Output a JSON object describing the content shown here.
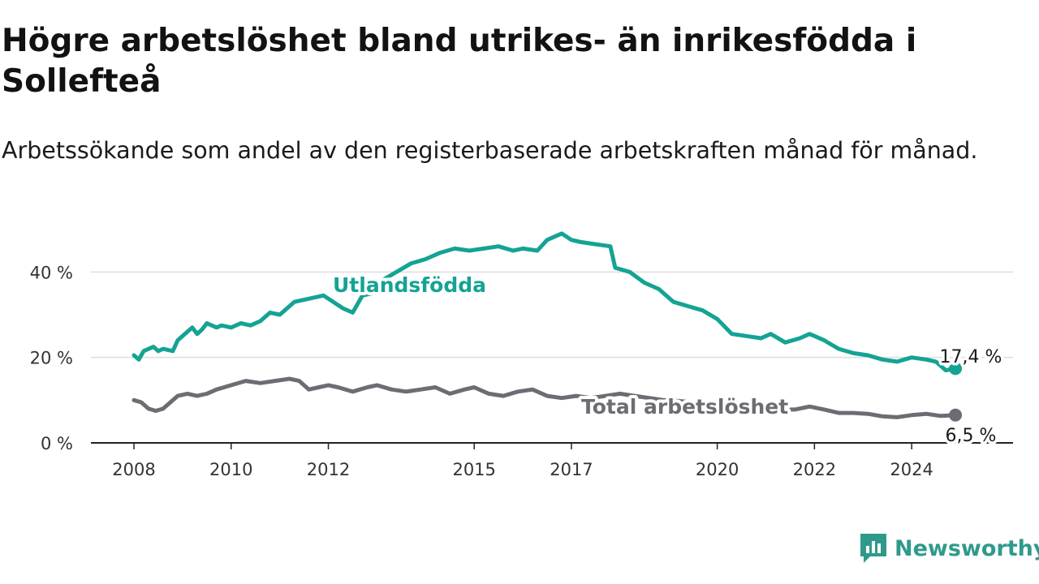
{
  "title": "Högre arbetslöshet bland utrikes- än inrikesfödda i Sollefteå",
  "subtitle": "Arbetssökande som andel av den registerbaserade arbetskraften månad för månad.",
  "logo_text": "Newsworthy",
  "colors": {
    "foreign": "#14a394",
    "total": "#6e6c73",
    "grid": "#dddddd",
    "axis": "#222222"
  },
  "chart_data": {
    "type": "line",
    "title": "Högre arbetslöshet bland utrikes- än inrikesfödda i Sollefteå",
    "subtitle": "Arbetssökande som andel av den registerbaserade arbetskraften månad för månad.",
    "xlabel": "",
    "ylabel": "",
    "xlim": [
      2008.0,
      2025.25
    ],
    "ylim": [
      0,
      45
    ],
    "grid": "horizontal",
    "x_ticks": [
      2008,
      2010,
      2012,
      2015,
      2017,
      2020,
      2022,
      2024
    ],
    "x_tick_labels": [
      "2008",
      "2010",
      "2012",
      "2015",
      "2017",
      "2020",
      "2022",
      "2024"
    ],
    "y_ticks": [
      0,
      20,
      40
    ],
    "y_tick_labels": [
      "0 %",
      "20 %",
      "40 %"
    ],
    "series": [
      {
        "name": "Utlandsfödda",
        "color": "#14a394",
        "end_label": "17,4 %",
        "x": [
          2008.0,
          2008.1,
          2008.2,
          2008.4,
          2008.5,
          2008.6,
          2008.8,
          2008.9,
          2009.0,
          2009.2,
          2009.3,
          2009.4,
          2009.5,
          2009.7,
          2009.8,
          2010.0,
          2010.2,
          2010.4,
          2010.6,
          2010.8,
          2011.0,
          2011.3,
          2011.5,
          2011.7,
          2011.9,
          2012.1,
          2012.3,
          2012.5,
          2012.7,
          2012.9,
          2013.1,
          2013.4,
          2013.7,
          2014.0,
          2014.3,
          2014.6,
          2014.9,
          2015.2,
          2015.5,
          2015.8,
          2016.0,
          2016.3,
          2016.5,
          2016.8,
          2017.0,
          2017.2,
          2017.5,
          2017.8,
          2017.9,
          2018.2,
          2018.5,
          2018.8,
          2019.1,
          2019.4,
          2019.7,
          2020.0,
          2020.3,
          2020.6,
          2020.9,
          2021.1,
          2021.4,
          2021.7,
          2021.9,
          2022.2,
          2022.5,
          2022.8,
          2023.1,
          2023.4,
          2023.7,
          2024.0,
          2024.3,
          2024.5,
          2024.7,
          2024.9
        ],
        "y": [
          20.5,
          19.5,
          21.5,
          22.5,
          21.5,
          22.0,
          21.5,
          24.0,
          25.0,
          27.0,
          25.5,
          26.5,
          28.0,
          27.0,
          27.5,
          27.0,
          28.0,
          27.5,
          28.5,
          30.5,
          30.0,
          33.0,
          33.5,
          34.0,
          34.5,
          33.0,
          31.5,
          30.5,
          34.5,
          35.0,
          38.0,
          40.0,
          42.0,
          43.0,
          44.5,
          45.5,
          45.0,
          45.5,
          46.0,
          45.0,
          45.5,
          45.0,
          47.5,
          49.0,
          47.5,
          47.0,
          46.5,
          46.0,
          41.0,
          40.0,
          37.5,
          36.0,
          33.0,
          32.0,
          31.0,
          29.0,
          25.5,
          25.0,
          24.5,
          25.5,
          23.5,
          24.5,
          25.5,
          24.0,
          22.0,
          21.0,
          20.5,
          19.5,
          19.0,
          20.0,
          19.5,
          19.0,
          17.0,
          17.4
        ]
      },
      {
        "name": "Total arbetslöshet",
        "color": "#6e6c73",
        "end_label": "6,5 %",
        "x": [
          2008.0,
          2008.15,
          2008.3,
          2008.45,
          2008.6,
          2008.75,
          2008.9,
          2009.1,
          2009.3,
          2009.5,
          2009.7,
          2010.0,
          2010.3,
          2010.6,
          2010.9,
          2011.2,
          2011.4,
          2011.6,
          2011.8,
          2012.0,
          2012.2,
          2012.5,
          2012.8,
          2013.0,
          2013.3,
          2013.6,
          2013.9,
          2014.2,
          2014.5,
          2014.8,
          2015.0,
          2015.3,
          2015.6,
          2015.9,
          2016.2,
          2016.5,
          2016.8,
          2017.1,
          2017.4,
          2017.7,
          2018.0,
          2018.3,
          2018.6,
          2018.9,
          2019.2,
          2019.5,
          2019.8,
          2020.1,
          2020.4,
          2020.7,
          2021.0,
          2021.3,
          2021.6,
          2021.9,
          2022.2,
          2022.5,
          2022.8,
          2023.1,
          2023.4,
          2023.7,
          2024.0,
          2024.3,
          2024.6,
          2024.9
        ],
        "y": [
          10.0,
          9.5,
          8.0,
          7.5,
          8.0,
          9.5,
          11.0,
          11.5,
          11.0,
          11.5,
          12.5,
          13.5,
          14.5,
          14.0,
          14.5,
          15.0,
          14.5,
          12.5,
          13.0,
          13.5,
          13.0,
          12.0,
          13.0,
          13.5,
          12.5,
          12.0,
          12.5,
          13.0,
          11.5,
          12.5,
          13.0,
          11.5,
          11.0,
          12.0,
          12.5,
          11.0,
          10.5,
          11.0,
          10.5,
          11.0,
          11.5,
          11.0,
          10.5,
          10.0,
          9.8,
          9.5,
          9.2,
          8.8,
          8.5,
          8.2,
          8.0,
          7.8,
          7.8,
          8.5,
          7.8,
          7.0,
          7.0,
          6.8,
          6.2,
          6.0,
          6.5,
          6.8,
          6.3,
          6.5
        ]
      }
    ]
  }
}
